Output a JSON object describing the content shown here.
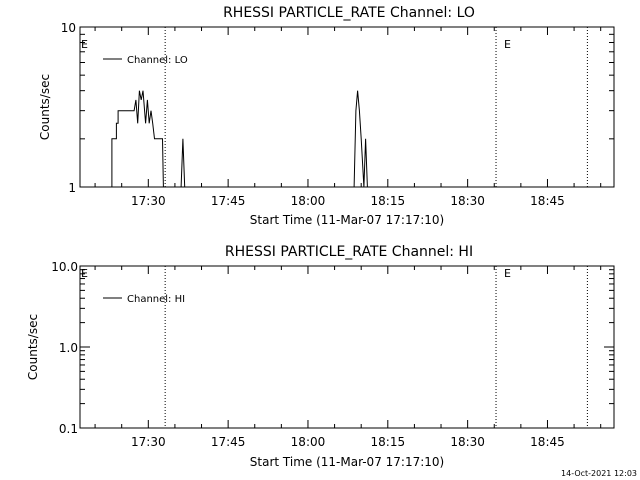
{
  "chart_data": [
    {
      "type": "line",
      "title": "RHESSI PARTICLE_RATE Channel: LO",
      "xlabel": "Start Time (11-Mar-07 17:17:10)",
      "ylabel": "Counts/sec",
      "yscale": "log",
      "ylim": [
        1,
        10
      ],
      "yticks": [
        1,
        10
      ],
      "ytick_labels": [
        "1",
        "10"
      ],
      "xlim": [
        "17:17:10",
        "18:57:30"
      ],
      "xticks": [
        "17:30",
        "17:45",
        "18:00",
        "18:15",
        "18:30",
        "18:45"
      ],
      "grid": false,
      "legend_position": "top-left",
      "series": [
        {
          "name": "Channel: LO",
          "points": [
            [
              "17:22:50",
              1
            ],
            [
              "17:23:10",
              1
            ],
            [
              "17:23:10",
              2
            ],
            [
              "17:24:00",
              2
            ],
            [
              "17:24:00",
              2.5
            ],
            [
              "17:24:20",
              2.5
            ],
            [
              "17:24:20",
              3
            ],
            [
              "17:27:20",
              3
            ],
            [
              "17:27:40",
              3.5
            ],
            [
              "17:28:00",
              2.5
            ],
            [
              "17:28:20",
              4
            ],
            [
              "17:28:40",
              3.5
            ],
            [
              "17:29:00",
              4
            ],
            [
              "17:29:30",
              2.5
            ],
            [
              "17:29:50",
              3.5
            ],
            [
              "17:30:10",
              2.5
            ],
            [
              "17:30:30",
              3
            ],
            [
              "17:30:50",
              2.5
            ],
            [
              "17:31:10",
              2
            ],
            [
              "17:32:30",
              2
            ],
            [
              "17:32:40",
              2
            ],
            [
              "17:32:50",
              1
            ],
            [
              "17:36:10",
              1
            ],
            [
              "17:36:30",
              2
            ],
            [
              "17:36:50",
              1
            ],
            [
              "18:08:40",
              1
            ],
            [
              "18:09:00",
              3
            ],
            [
              "18:09:20",
              4
            ],
            [
              "18:09:40",
              3
            ],
            [
              "18:10:00",
              2
            ],
            [
              "18:10:30",
              1
            ],
            [
              "18:10:50",
              2
            ],
            [
              "18:11:10",
              1
            ]
          ]
        }
      ],
      "event_lines": [
        "17:33:10",
        "18:35:20",
        "18:52:30"
      ],
      "event_marks": [
        "E",
        "E"
      ]
    },
    {
      "type": "line",
      "title": "RHESSI PARTICLE_RATE Channel: HI",
      "xlabel": "Start Time (11-Mar-07 17:17:10)",
      "ylabel": "Counts/sec",
      "yscale": "log",
      "ylim": [
        0.1,
        10
      ],
      "yticks": [
        0.1,
        1.0,
        10.0
      ],
      "ytick_labels": [
        "0.1",
        "1.0",
        "10.0"
      ],
      "xlim": [
        "17:17:10",
        "18:57:30"
      ],
      "xticks": [
        "17:30",
        "17:45",
        "18:00",
        "18:15",
        "18:30",
        "18:45"
      ],
      "grid": false,
      "legend_position": "top-left",
      "series": [
        {
          "name": "Channel: HI",
          "points": []
        }
      ],
      "event_lines": [
        "17:33:10",
        "18:35:20",
        "18:52:30"
      ],
      "event_marks": [
        "E",
        "E"
      ]
    }
  ],
  "timestamp": "14-Oct-2021 12:03"
}
